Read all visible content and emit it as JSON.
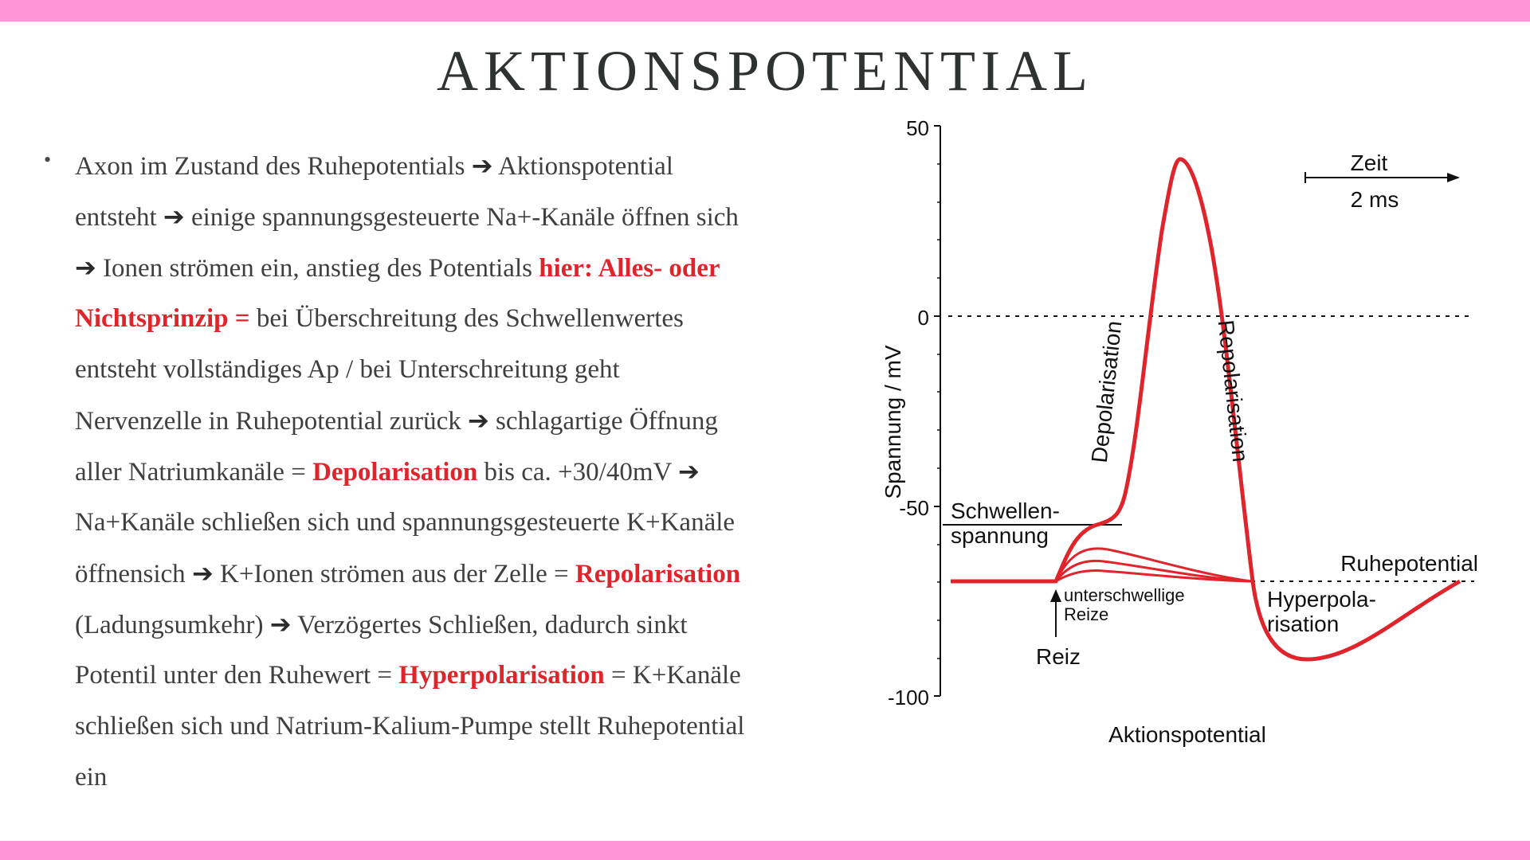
{
  "title": "AKTIONSPOTENTIAL",
  "colors": {
    "accent_bar": "#ff94d6",
    "highlight": "#e0242c",
    "curve": "#e0242c"
  },
  "bullet_lines": [
    [
      {
        "t": "Axon im Zustand des Ruhepotentials "
      },
      {
        "a": "➔"
      },
      {
        "t": " Aktionspotential"
      }
    ],
    [
      {
        "t": "entsteht "
      },
      {
        "a": "➔"
      },
      {
        "t": " einige spannungsgesteuerte Na+-Kanäle öffnen sich"
      }
    ],
    [
      {
        "a": "➔"
      },
      {
        "t": " Ionen strömen ein, anstieg des Potentials "
      },
      {
        "h": "hier: Alles- oder"
      }
    ],
    [
      {
        "h": "Nichtsprinzip ="
      },
      {
        "t": " bei Überschreitung des Schwellenwertes"
      }
    ],
    [
      {
        "t": "entsteht vollständiges Ap / bei Unterschreitung geht"
      }
    ],
    [
      {
        "t": "Nervenzelle in Ruhepotential zurück "
      },
      {
        "a": "➔"
      },
      {
        "t": " schlagartige Öffnung"
      }
    ],
    [
      {
        "t": "aller Natriumkanäle = "
      },
      {
        "h": "Depolarisation"
      },
      {
        "t": " bis ca.  +30/40mV "
      },
      {
        "a": "➔"
      }
    ],
    [
      {
        "t": "Na+Kanäle schließen sich und spannungsgesteuerte K+Kanäle"
      }
    ],
    [
      {
        "t": "öffnensich "
      },
      {
        "a": "➔"
      },
      {
        "t": " K+Ionen strömen aus der Zelle = "
      },
      {
        "h": "Repolarisation"
      }
    ],
    [
      {
        "t": "(Ladungsumkehr) "
      },
      {
        "a": "➔"
      },
      {
        "t": " Verzögertes Schließen, dadurch sinkt"
      }
    ],
    [
      {
        "t": "Potentil unter den Ruhewert = "
      },
      {
        "h": "Hyperpolarisation"
      },
      {
        "t": " = K+Kanäle"
      }
    ],
    [
      {
        "t": "schließen sich und Natrium-Kalium-Pumpe stellt Ruhepotential"
      }
    ],
    [
      {
        "t": "ein"
      }
    ]
  ],
  "diagram": {
    "y_axis_label": "Spannung / mV",
    "y_ticks": [
      "50",
      "0",
      "-50",
      "-100"
    ],
    "caption": "Aktionspotential",
    "time_scale_label": "Zeit",
    "time_scale_value": "2 ms",
    "labels": {
      "threshold_1": "Schwellen-",
      "threshold_2": "spannung",
      "depolarisation": "Depolarisation",
      "repolarisation": "Repolarisation",
      "resting": "Ruhepotential",
      "hyper_1": "Hyperpola-",
      "hyper_2": "risation",
      "subthreshold_1": "unterschwellige",
      "subthreshold_2": "Reize",
      "stimulus": "Reiz"
    }
  }
}
